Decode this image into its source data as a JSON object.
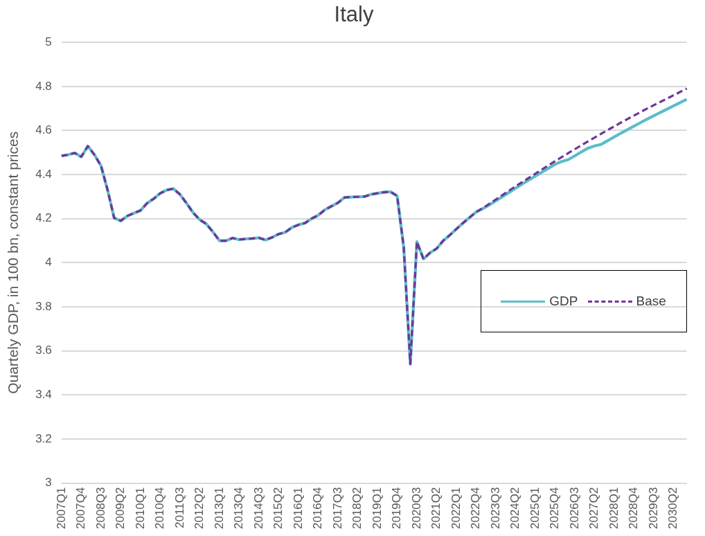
{
  "chart_data": {
    "type": "line",
    "title": "Italy",
    "ylabel": "Quartely GDP, in 100 bn, constant prices",
    "categories": [
      "2007Q1",
      null,
      null,
      "2007Q4",
      null,
      null,
      "2008Q3",
      null,
      null,
      "2009Q2",
      null,
      null,
      "2010Q1",
      null,
      null,
      "2010Q4",
      null,
      null,
      "2011Q3",
      null,
      null,
      "2012Q2",
      null,
      null,
      "2013Q1",
      null,
      null,
      "2013Q4",
      null,
      null,
      "2014Q3",
      null,
      null,
      "2015Q2",
      null,
      null,
      "2016Q1",
      null,
      null,
      "2016Q4",
      null,
      null,
      "2017Q3",
      null,
      null,
      "2018Q2",
      null,
      null,
      "2019Q1",
      null,
      null,
      "2019Q4",
      null,
      null,
      "2020Q3",
      null,
      null,
      "2021Q2",
      null,
      null,
      "2022Q1",
      null,
      null,
      "2022Q4",
      null,
      null,
      "2023Q3",
      null,
      null,
      "2024Q2",
      null,
      null,
      "2025Q1",
      null,
      null,
      "2025Q4",
      null,
      null,
      "2026Q3",
      null,
      null,
      "2027Q2",
      null,
      null,
      "2028Q1",
      null,
      null,
      "2028Q4",
      null,
      null,
      "2029Q3",
      null,
      null,
      "2030Q2",
      null,
      null
    ],
    "series": [
      {
        "name": "GDP",
        "color": "#5bbdc9",
        "line_style": "solid",
        "values": [
          4.485,
          4.49,
          4.498,
          4.481,
          4.529,
          4.49,
          4.44,
          4.33,
          4.203,
          4.19,
          4.212,
          4.225,
          4.237,
          4.27,
          4.29,
          4.315,
          4.33,
          4.336,
          4.31,
          4.27,
          4.227,
          4.195,
          4.176,
          4.14,
          4.1,
          4.1,
          4.112,
          4.105,
          4.108,
          4.11,
          4.113,
          4.103,
          4.115,
          4.13,
          4.138,
          4.16,
          4.172,
          4.18,
          4.2,
          4.215,
          4.24,
          4.256,
          4.272,
          4.296,
          4.298,
          4.299,
          4.3,
          4.31,
          4.315,
          4.32,
          4.322,
          4.303,
          4.07,
          3.54,
          4.095,
          4.017,
          4.045,
          4.064,
          4.1,
          4.125,
          4.153,
          4.18,
          4.205,
          4.23,
          4.245,
          4.262,
          4.281,
          4.3,
          4.319,
          4.338,
          4.357,
          4.375,
          4.393,
          4.411,
          4.429,
          4.447,
          4.459,
          4.468,
          4.485,
          4.503,
          4.52,
          4.53,
          4.537,
          4.554,
          4.571,
          4.588,
          4.604,
          4.62,
          4.636,
          4.652,
          4.667,
          4.682,
          4.697,
          4.712,
          4.727,
          4.742
        ]
      },
      {
        "name": "Base",
        "color": "#70359a",
        "line_style": "dashed",
        "values": [
          4.485,
          4.49,
          4.498,
          4.481,
          4.529,
          4.49,
          4.44,
          4.33,
          4.203,
          4.19,
          4.212,
          4.225,
          4.237,
          4.27,
          4.29,
          4.315,
          4.33,
          4.336,
          4.31,
          4.27,
          4.227,
          4.195,
          4.176,
          4.14,
          4.1,
          4.1,
          4.112,
          4.105,
          4.108,
          4.11,
          4.113,
          4.103,
          4.115,
          4.13,
          4.138,
          4.16,
          4.172,
          4.18,
          4.2,
          4.215,
          4.24,
          4.256,
          4.272,
          4.296,
          4.298,
          4.299,
          4.3,
          4.31,
          4.315,
          4.32,
          4.322,
          4.303,
          4.07,
          3.54,
          4.095,
          4.017,
          4.045,
          4.064,
          4.1,
          4.125,
          4.153,
          4.18,
          4.205,
          4.23,
          4.248,
          4.267,
          4.287,
          4.307,
          4.327,
          4.347,
          4.366,
          4.385,
          4.404,
          4.423,
          4.442,
          4.461,
          4.479,
          4.497,
          4.515,
          4.533,
          4.551,
          4.568,
          4.585,
          4.602,
          4.619,
          4.636,
          4.652,
          4.668,
          4.684,
          4.7,
          4.715,
          4.73,
          4.745,
          4.76,
          4.775,
          4.79
        ]
      }
    ],
    "ylim": [
      3,
      5
    ],
    "yticks": [
      3,
      3.2,
      3.4,
      3.6,
      3.8,
      4,
      4.2,
      4.4,
      4.6,
      4.8,
      5
    ],
    "grid": "y",
    "legend": "right",
    "marker": "none"
  }
}
